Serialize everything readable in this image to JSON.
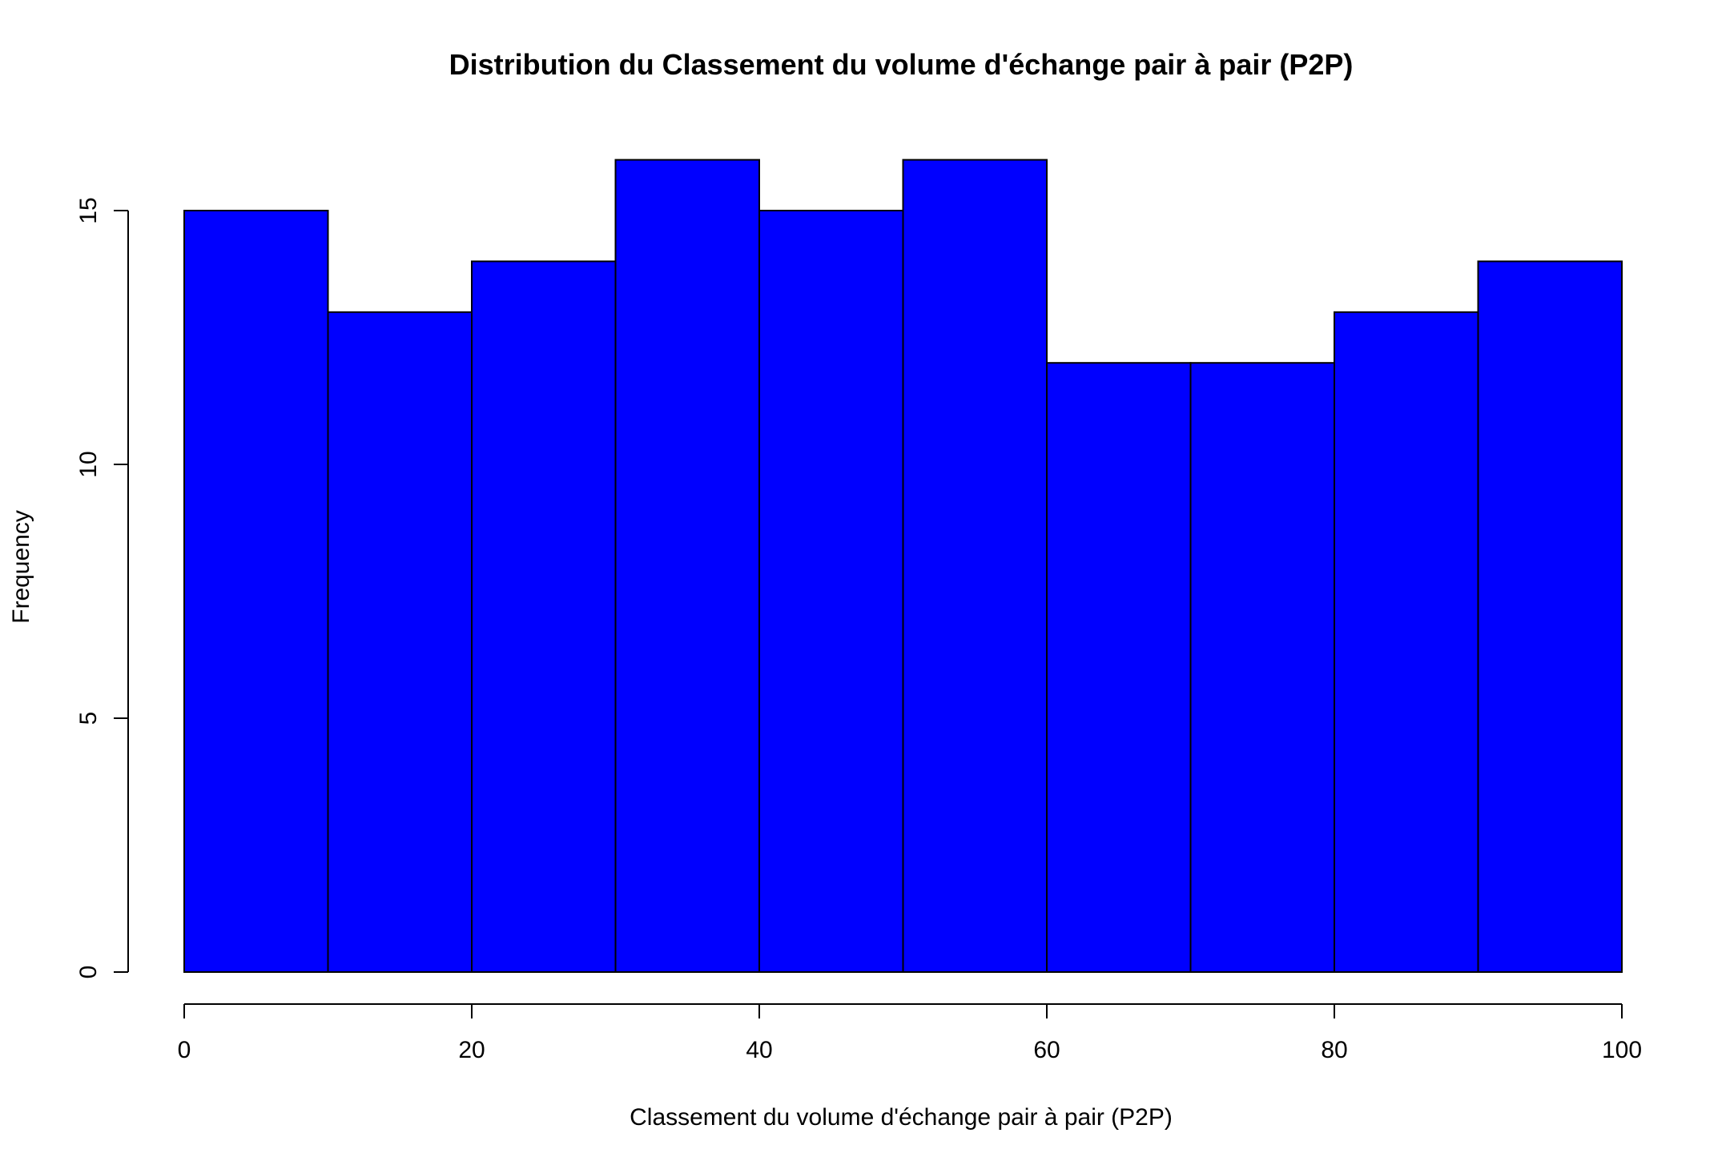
{
  "chart_data": {
    "type": "bar",
    "subtype": "histogram",
    "title": "Distribution du Classement du volume d'échange pair à pair (P2P)",
    "xlabel": "Classement du volume d'échange pair à pair (P2P)",
    "ylabel": "Frequency",
    "bins": [
      {
        "start": 0,
        "end": 10,
        "count": 15
      },
      {
        "start": 10,
        "end": 20,
        "count": 13
      },
      {
        "start": 20,
        "end": 30,
        "count": 14
      },
      {
        "start": 30,
        "end": 40,
        "count": 16
      },
      {
        "start": 40,
        "end": 50,
        "count": 15
      },
      {
        "start": 50,
        "end": 60,
        "count": 16
      },
      {
        "start": 60,
        "end": 70,
        "count": 12
      },
      {
        "start": 70,
        "end": 80,
        "count": 12
      },
      {
        "start": 80,
        "end": 90,
        "count": 13
      },
      {
        "start": 90,
        "end": 100,
        "count": 14
      }
    ],
    "xlim": [
      0,
      100
    ],
    "ylim": [
      0,
      16
    ],
    "xticks": [
      0,
      20,
      40,
      60,
      80,
      100
    ],
    "yticks": [
      0,
      5,
      10,
      15
    ],
    "bar_color": "#0000ff",
    "edge_color": "#000000",
    "grid": false,
    "legend": "none"
  }
}
